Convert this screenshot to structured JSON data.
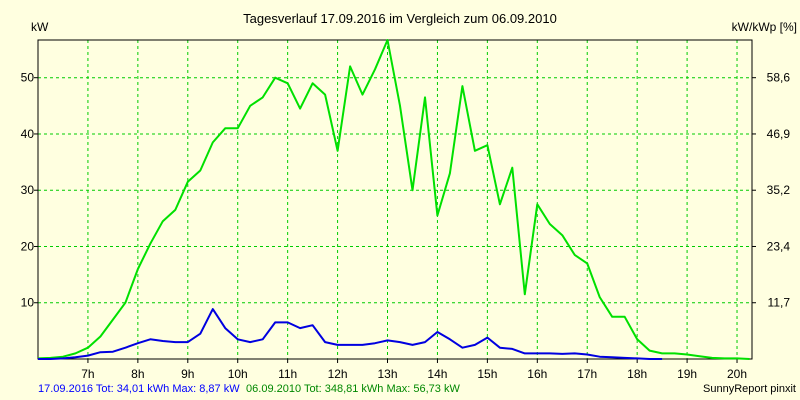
{
  "chart_data": {
    "type": "line",
    "title": "Tagesverlauf 17.09.2016 im Vergleich zum 06.09.2010",
    "ylabel_left": "kW",
    "ylabel_right": "kW/kWp [%]",
    "x_ticks": [
      "7h",
      "8h",
      "9h",
      "10h",
      "11h",
      "12h",
      "13h",
      "14h",
      "15h",
      "16h",
      "17h",
      "18h",
      "19h",
      "20h"
    ],
    "x_tick_values": [
      7,
      8,
      9,
      10,
      11,
      12,
      13,
      14,
      15,
      16,
      17,
      18,
      19,
      20
    ],
    "xlim": [
      6.0,
      20.3
    ],
    "y_ticks_left": [
      "10",
      "20",
      "30",
      "40",
      "50"
    ],
    "y_tick_values_left": [
      10,
      20,
      30,
      40,
      50
    ],
    "y_ticks_right": [
      "11,7",
      "23,4",
      "35,2",
      "46,9",
      "58,6"
    ],
    "ylim": [
      0,
      56.7
    ],
    "grid": true,
    "series": [
      {
        "name": "06.09.2010",
        "color": "#00e000",
        "x": [
          6.0,
          6.25,
          6.5,
          6.75,
          7.0,
          7.25,
          7.5,
          7.75,
          8.0,
          8.25,
          8.5,
          8.75,
          9.0,
          9.25,
          9.5,
          9.75,
          10.0,
          10.25,
          10.5,
          10.75,
          11.0,
          11.25,
          11.5,
          11.75,
          12.0,
          12.25,
          12.5,
          12.75,
          13.0,
          13.25,
          13.5,
          13.75,
          14.0,
          14.25,
          14.5,
          14.75,
          15.0,
          15.25,
          15.5,
          15.75,
          16.0,
          16.25,
          16.5,
          16.75,
          17.0,
          17.25,
          17.5,
          17.75,
          18.0,
          18.25,
          18.5,
          18.75,
          19.0,
          19.25,
          19.5,
          19.75,
          20.0,
          20.25
        ],
        "values": [
          0.1,
          0.2,
          0.4,
          1.0,
          2.0,
          4.0,
          7.0,
          10.0,
          16.0,
          20.5,
          24.5,
          26.5,
          31.5,
          33.5,
          38.5,
          41.0,
          41.0,
          45.0,
          46.5,
          50.0,
          49.0,
          44.5,
          49.0,
          47.0,
          37.0,
          52.0,
          47.0,
          51.5,
          56.7,
          45.0,
          30.0,
          46.5,
          25.5,
          33.0,
          48.5,
          37.0,
          38.0,
          27.5,
          34.0,
          11.5,
          27.5,
          24.0,
          22.0,
          18.5,
          17.0,
          11.0,
          7.5,
          7.5,
          3.5,
          1.5,
          1.0,
          1.0,
          0.8,
          0.5,
          0.2,
          0.1,
          0.1,
          0.0
        ]
      },
      {
        "name": "17.09.2016",
        "color": "#0000e0",
        "x": [
          6.0,
          6.25,
          6.5,
          6.75,
          7.0,
          7.25,
          7.5,
          7.75,
          8.0,
          8.25,
          8.5,
          8.75,
          9.0,
          9.25,
          9.5,
          9.75,
          10.0,
          10.25,
          10.5,
          10.75,
          11.0,
          11.25,
          11.5,
          11.75,
          12.0,
          12.25,
          12.5,
          12.75,
          13.0,
          13.25,
          13.5,
          13.75,
          14.0,
          14.25,
          14.5,
          14.75,
          15.0,
          15.25,
          15.5,
          15.75,
          16.0,
          16.25,
          16.5,
          16.75,
          17.0,
          17.25,
          17.5,
          17.75,
          18.0,
          18.25,
          18.5
        ],
        "values": [
          0.0,
          0.0,
          0.1,
          0.3,
          0.6,
          1.2,
          1.3,
          2.0,
          2.8,
          3.5,
          3.2,
          3.0,
          3.0,
          4.5,
          8.87,
          5.5,
          3.5,
          3.0,
          3.5,
          6.5,
          6.5,
          5.5,
          6.0,
          3.0,
          2.5,
          2.5,
          2.5,
          2.8,
          3.3,
          3.0,
          2.5,
          3.0,
          4.8,
          3.5,
          2.0,
          2.5,
          3.8,
          2.0,
          1.8,
          1.0,
          1.0,
          1.0,
          0.9,
          1.0,
          0.8,
          0.4,
          0.3,
          0.2,
          0.1,
          0.0,
          0.0
        ]
      }
    ]
  },
  "footer": {
    "left_blue": "17.09.2016 Tot: 34,01 kWh Max: 8,87 kW",
    "left_green": "06.09.2010 Tot: 348,81 kWh Max: 56,73 kW",
    "right": "SunnyReport pinxit"
  }
}
